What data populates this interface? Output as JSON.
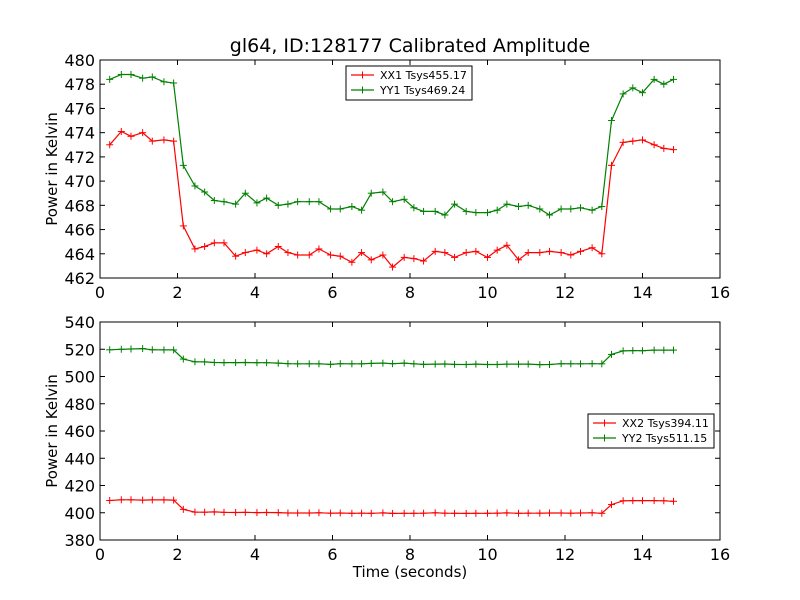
{
  "title": "gl64, ID:128177 Calibrated Amplitude",
  "chart_data": [
    {
      "type": "line",
      "title": "gl64, ID:128177 Calibrated Amplitude",
      "xlabel": "",
      "ylabel": "Power in Kelvin",
      "xlim": [
        0,
        16
      ],
      "ylim": [
        462,
        480
      ],
      "xticks": [
        0,
        2,
        4,
        6,
        8,
        10,
        12,
        14,
        16
      ],
      "yticks": [
        462,
        464,
        466,
        468,
        470,
        472,
        474,
        476,
        478,
        480
      ],
      "grid": false,
      "legend_position": "top-center",
      "x": [
        0.25,
        0.55,
        0.8,
        1.1,
        1.35,
        1.65,
        1.9,
        2.15,
        2.45,
        2.7,
        2.95,
        3.2,
        3.5,
        3.75,
        4.05,
        4.3,
        4.6,
        4.85,
        5.1,
        5.4,
        5.65,
        5.95,
        6.2,
        6.5,
        6.75,
        7.0,
        7.3,
        7.55,
        7.85,
        8.1,
        8.35,
        8.65,
        8.9,
        9.15,
        9.45,
        9.7,
        10.0,
        10.25,
        10.5,
        10.8,
        11.05,
        11.35,
        11.6,
        11.9,
        12.15,
        12.4,
        12.7,
        12.95,
        13.2,
        13.5,
        13.75,
        14.0,
        14.3,
        14.55,
        14.8
      ],
      "series": [
        {
          "name": "XX1 Tsys455.17",
          "color": "#ff0000",
          "values": [
            473.0,
            474.1,
            473.7,
            474.0,
            473.3,
            473.4,
            473.3,
            466.3,
            464.4,
            464.6,
            464.9,
            464.9,
            463.8,
            464.1,
            464.3,
            464.0,
            464.6,
            464.1,
            463.9,
            463.9,
            464.4,
            463.9,
            463.8,
            463.3,
            464.1,
            463.5,
            463.9,
            462.9,
            463.7,
            463.6,
            463.4,
            464.2,
            464.1,
            463.7,
            464.1,
            464.2,
            463.7,
            464.3,
            464.7,
            463.5,
            464.1,
            464.1,
            464.2,
            464.1,
            463.9,
            464.2,
            464.5,
            464.0,
            471.3,
            473.2,
            473.3,
            473.4,
            473.0,
            472.7,
            472.6
          ]
        },
        {
          "name": "YY1 Tsys469.24",
          "color": "#008000",
          "values": [
            478.4,
            478.8,
            478.8,
            478.5,
            478.6,
            478.2,
            478.1,
            471.3,
            469.6,
            469.1,
            468.4,
            468.3,
            468.1,
            469.0,
            468.2,
            468.6,
            468.0,
            468.1,
            468.3,
            468.3,
            468.3,
            467.7,
            467.7,
            467.9,
            467.6,
            469.0,
            469.1,
            468.3,
            468.5,
            467.8,
            467.5,
            467.5,
            467.2,
            468.1,
            467.5,
            467.4,
            467.4,
            467.6,
            468.1,
            467.9,
            468.0,
            467.7,
            467.2,
            467.7,
            467.7,
            467.8,
            467.6,
            467.9,
            475.0,
            477.2,
            477.7,
            477.3,
            478.4,
            478.0,
            478.4
          ]
        }
      ]
    },
    {
      "type": "line",
      "title": "",
      "xlabel": "Time (seconds)",
      "ylabel": "Power in Kelvin",
      "xlim": [
        0,
        16
      ],
      "ylim": [
        380,
        540
      ],
      "xticks": [
        0,
        2,
        4,
        6,
        8,
        10,
        12,
        14,
        16
      ],
      "yticks": [
        380,
        400,
        420,
        440,
        460,
        480,
        500,
        520,
        540
      ],
      "grid": false,
      "legend_position": "center-right",
      "x": [
        0.25,
        0.55,
        0.8,
        1.1,
        1.35,
        1.65,
        1.9,
        2.15,
        2.45,
        2.7,
        2.95,
        3.2,
        3.5,
        3.75,
        4.05,
        4.3,
        4.6,
        4.85,
        5.1,
        5.4,
        5.65,
        5.95,
        6.2,
        6.5,
        6.75,
        7.0,
        7.3,
        7.55,
        7.85,
        8.1,
        8.35,
        8.65,
        8.9,
        9.15,
        9.45,
        9.7,
        10.0,
        10.25,
        10.5,
        10.8,
        11.05,
        11.35,
        11.6,
        11.9,
        12.15,
        12.4,
        12.7,
        12.95,
        13.2,
        13.5,
        13.75,
        14.0,
        14.3,
        14.55,
        14.8
      ],
      "series": [
        {
          "name": "XX2 Tsys394.11",
          "color": "#ff0000",
          "values": [
            409.0,
            409.5,
            409.5,
            409.3,
            409.4,
            409.4,
            409.3,
            402.5,
            400.5,
            400.4,
            400.6,
            400.3,
            400.2,
            400.3,
            400.1,
            400.2,
            400.1,
            399.8,
            399.8,
            399.8,
            400.0,
            399.7,
            399.8,
            399.6,
            399.7,
            399.6,
            399.9,
            399.5,
            399.6,
            399.6,
            399.7,
            400.0,
            399.7,
            399.6,
            399.5,
            399.6,
            399.6,
            399.7,
            399.9,
            399.6,
            399.7,
            399.7,
            399.8,
            399.8,
            399.7,
            399.8,
            400.0,
            399.6,
            406.0,
            408.8,
            408.9,
            408.9,
            408.9,
            408.8,
            408.4
          ]
        },
        {
          "name": "YY2 Tsys511.15",
          "color": "#008000",
          "values": [
            519.6,
            520.0,
            520.2,
            520.5,
            519.6,
            519.5,
            519.5,
            512.8,
            510.8,
            510.7,
            510.3,
            510.2,
            510.2,
            510.3,
            510.1,
            510.1,
            509.8,
            509.4,
            509.3,
            509.3,
            509.3,
            508.9,
            509.4,
            509.3,
            509.3,
            509.6,
            509.8,
            509.4,
            509.8,
            509.3,
            508.9,
            509.1,
            509.2,
            508.9,
            508.8,
            509.1,
            508.8,
            508.8,
            509.1,
            509.1,
            509.1,
            508.7,
            508.8,
            509.4,
            509.3,
            509.3,
            509.4,
            509.3,
            516.2,
            518.8,
            519.0,
            518.9,
            519.4,
            519.4,
            519.4
          ]
        }
      ]
    }
  ]
}
